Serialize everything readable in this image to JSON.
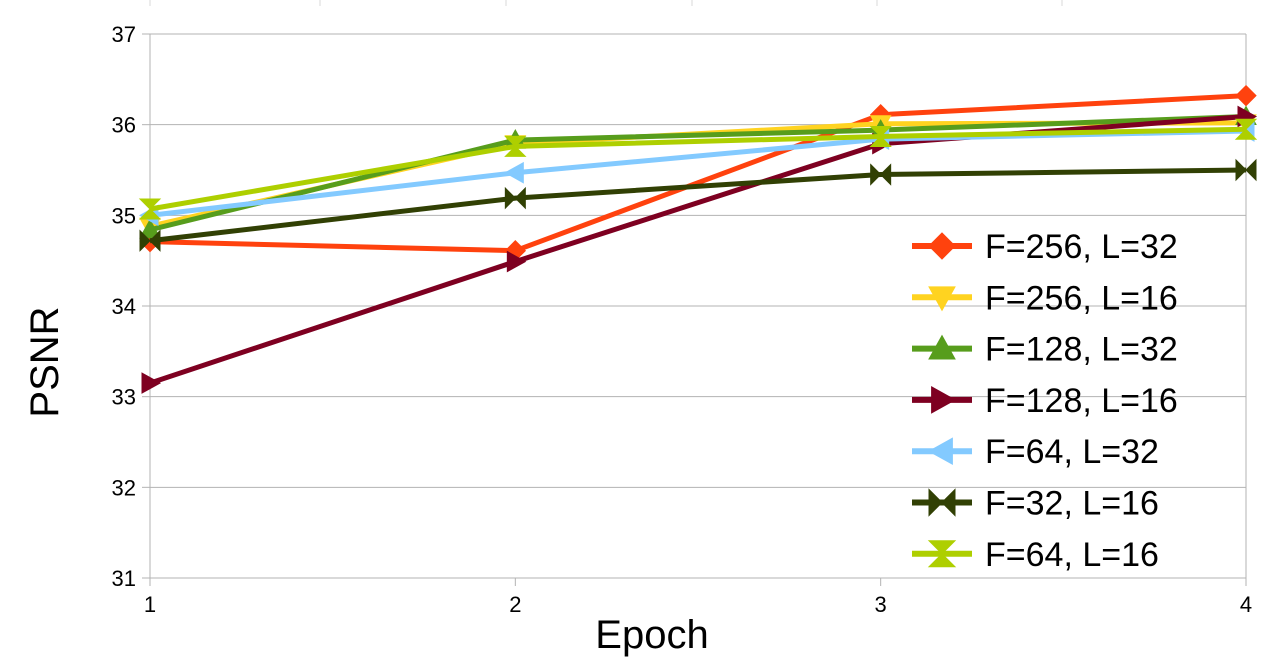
{
  "chart_data": {
    "type": "line",
    "title": "",
    "xlabel": "Epoch",
    "ylabel": "PSNR",
    "x": [
      1,
      2,
      3,
      4
    ],
    "x_tick_labels": [
      "1",
      "2",
      "3",
      "4"
    ],
    "ylim": [
      31,
      37
    ],
    "y_tick_labels": [
      "31",
      "32",
      "33",
      "34",
      "35",
      "36",
      "37"
    ],
    "grid": "horizontal",
    "legend_position": "right",
    "series": [
      {
        "name": "F=256, L=32",
        "values": [
          34.71,
          34.61,
          36.11,
          36.32
        ],
        "color": "#ff420e",
        "marker": "diamond"
      },
      {
        "name": "F=256, L=16",
        "values": [
          34.88,
          35.79,
          36.01,
          36.02
        ],
        "color": "#ffd320",
        "marker": "triangle-down"
      },
      {
        "name": "F=128, L=32",
        "values": [
          34.84,
          35.83,
          35.94,
          36.09
        ],
        "color": "#579d1c",
        "marker": "triangle-up"
      },
      {
        "name": "F=128, L=16",
        "values": [
          33.15,
          34.49,
          35.79,
          36.09
        ],
        "color": "#7e0021",
        "marker": "triangle-right"
      },
      {
        "name": "F=64, L=32",
        "values": [
          35.0,
          35.47,
          35.84,
          35.93
        ],
        "color": "#83caff",
        "marker": "triangle-left"
      },
      {
        "name": "F=32, L=16",
        "values": [
          34.72,
          35.19,
          35.45,
          35.5
        ],
        "color": "#314004",
        "marker": "bowtie-horizontal"
      },
      {
        "name": "F=64, L=16",
        "values": [
          35.07,
          35.76,
          35.87,
          35.95
        ],
        "color": "#aecf00",
        "marker": "bowtie-vertical"
      }
    ]
  }
}
